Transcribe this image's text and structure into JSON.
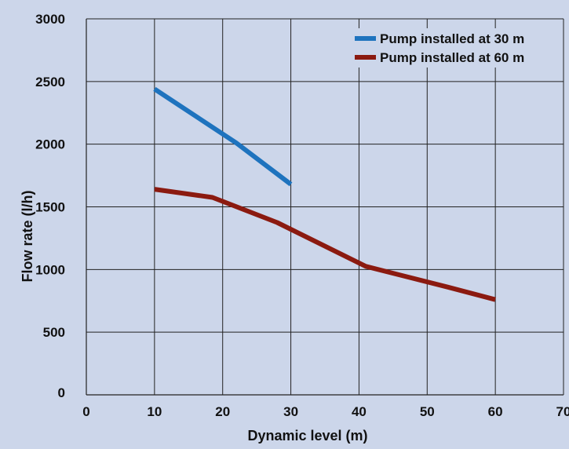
{
  "chart_data": {
    "type": "line",
    "xlabel": "Dynamic level (m)",
    "ylabel": "Flow rate (l/h)",
    "xlim": [
      0,
      70
    ],
    "ylim": [
      0,
      3000
    ],
    "x_ticks": [
      0,
      10,
      20,
      30,
      40,
      50,
      60,
      70
    ],
    "y_ticks": [
      0,
      500,
      1000,
      1500,
      2000,
      2500,
      3000
    ],
    "x_tick_labels": [
      "0",
      "10",
      "20",
      "30",
      "40",
      "50",
      "60",
      "70"
    ],
    "y_tick_labels": [
      "0",
      "500",
      "1000",
      "1500",
      "2000",
      "2500",
      "3000"
    ],
    "grid": true,
    "legend_position": "top-right",
    "series": [
      {
        "name": "Pump installed at 30 m",
        "color": "#1e73be",
        "points": [
          [
            10,
            2440
          ],
          [
            22,
            2010
          ],
          [
            30,
            1680
          ]
        ]
      },
      {
        "name": "Pump installed at 60 m",
        "color": "#8b1a10",
        "points": [
          [
            10,
            1640
          ],
          [
            18.5,
            1575
          ],
          [
            28,
            1375
          ],
          [
            41,
            1025
          ],
          [
            53,
            860
          ],
          [
            60,
            760
          ]
        ]
      }
    ]
  }
}
